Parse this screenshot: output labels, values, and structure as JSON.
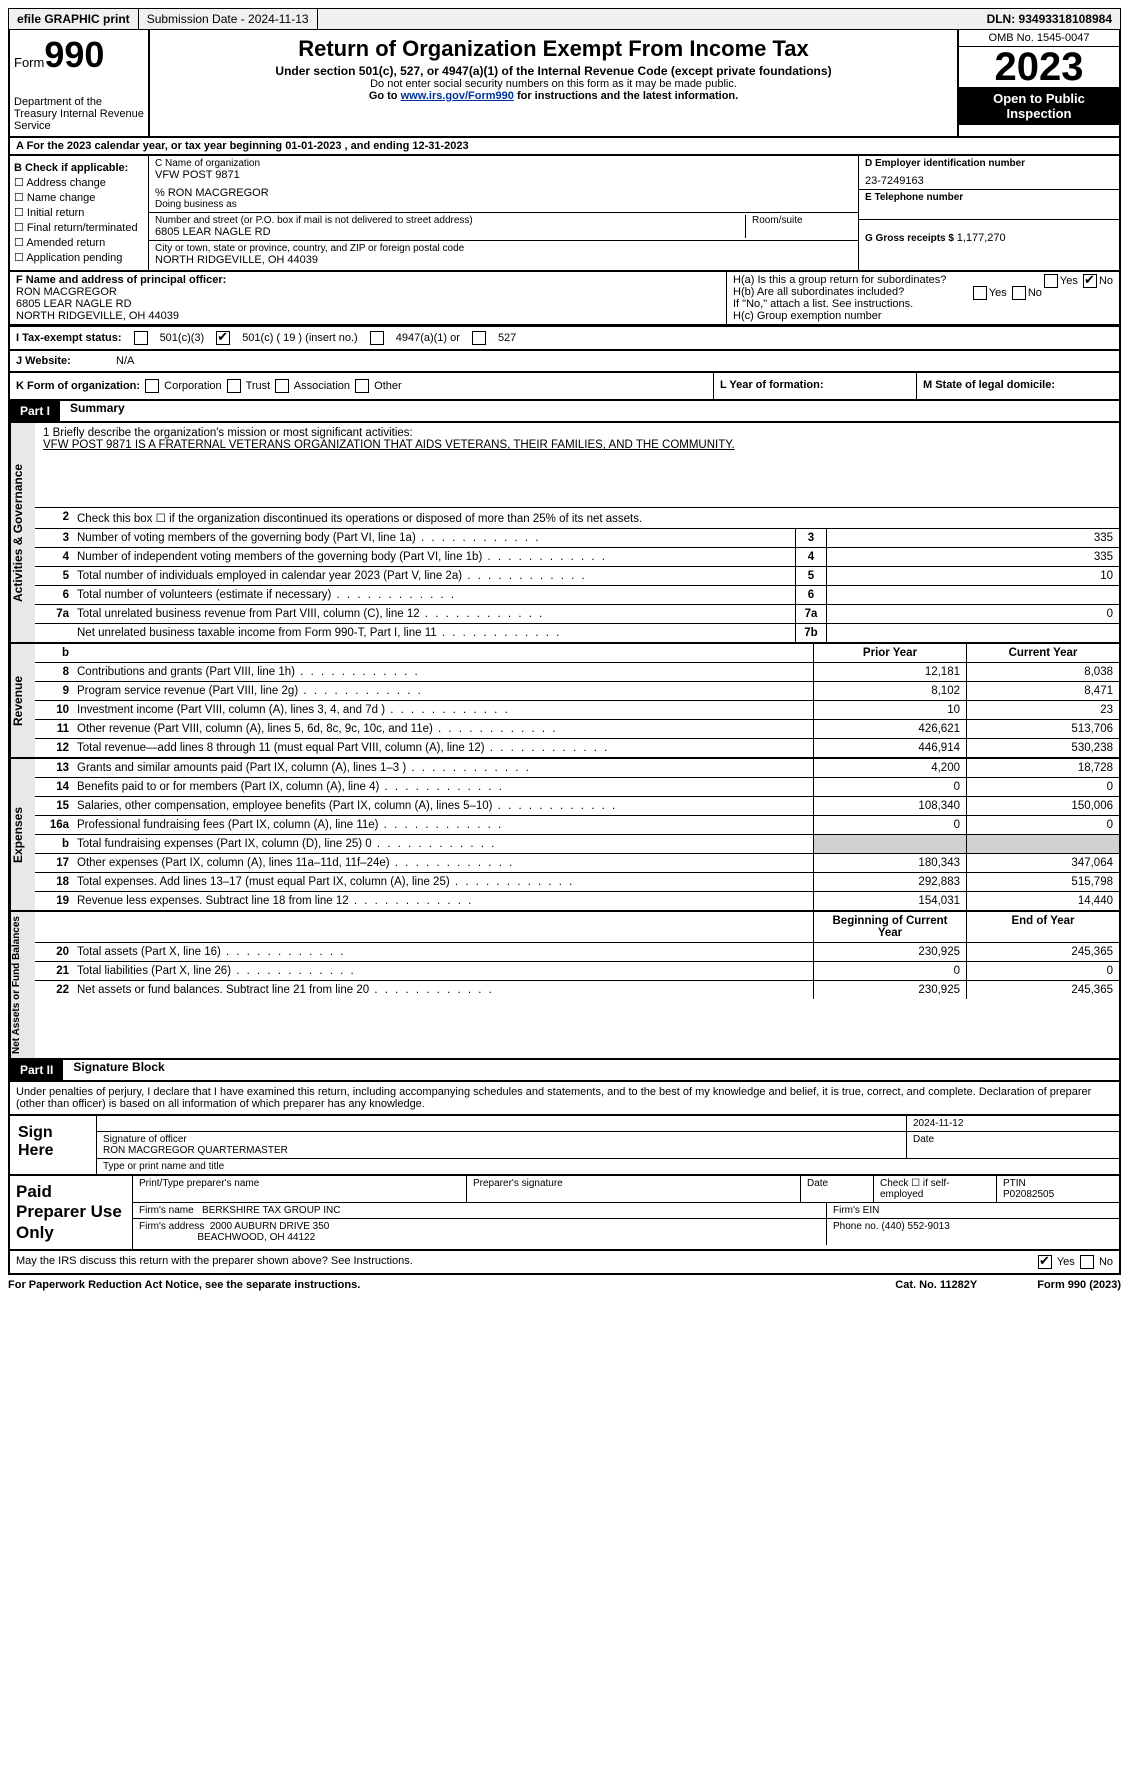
{
  "top": {
    "efile": "efile GRAPHIC print",
    "submission": "Submission Date - 2024-11-13",
    "dln": "DLN: 93493318108984"
  },
  "header": {
    "form": "Form",
    "num": "990",
    "dept": "Department of the Treasury Internal Revenue Service",
    "title": "Return of Organization Exempt From Income Tax",
    "sub": "Under section 501(c), 527, or 4947(a)(1) of the Internal Revenue Code (except private foundations)",
    "small1": "Do not enter social security numbers on this form as it may be made public.",
    "small2_pre": "Go to ",
    "small2_link": "www.irs.gov/Form990",
    "small2_post": " for instructions and the latest information.",
    "omb": "OMB No. 1545-0047",
    "year": "2023",
    "open": "Open to Public Inspection"
  },
  "rowA": "A For the 2023 calendar year, or tax year beginning 01-01-2023   , and ending 12-31-2023",
  "B": {
    "hdr": "B Check if applicable:",
    "opts": [
      "Address change",
      "Name change",
      "Initial return",
      "Final return/terminated",
      "Amended return",
      "Application pending"
    ]
  },
  "C": {
    "lbl": "C Name of organization",
    "name": "VFW POST 9871",
    "care": "% RON MACGREGOR",
    "dba_lbl": "Doing business as",
    "addr_lbl": "Number and street (or P.O. box if mail is not delivered to street address)",
    "room_lbl": "Room/suite",
    "addr": "6805 LEAR NAGLE RD",
    "city_lbl": "City or town, state or province, country, and ZIP or foreign postal code",
    "city": "NORTH RIDGEVILLE, OH  44039"
  },
  "D": {
    "lbl": "D Employer identification number",
    "val": "23-7249163"
  },
  "E": {
    "lbl": "E Telephone number"
  },
  "G": {
    "lbl": "G Gross receipts $ ",
    "val": "1,177,270"
  },
  "F": {
    "lbl": "F  Name and address of principal officer:",
    "l1": "RON MACGREGOR",
    "l2": "6805 LEAR NAGLE RD",
    "l3": "NORTH RIDGEVILLE, OH  44039"
  },
  "H": {
    "a": "H(a)  Is this a group return for subordinates?",
    "b": "H(b)  Are all subordinates included?",
    "b2": "If \"No,\" attach a list. See instructions.",
    "c": "H(c)  Group exemption number"
  },
  "I": {
    "lbl": "I   Tax-exempt status:",
    "o1": "501(c)(3)",
    "o2": "501(c) ( 19 ) (insert no.)",
    "o3": "4947(a)(1) or",
    "o4": "527"
  },
  "J": {
    "lbl": "J   Website:",
    "val": "N/A"
  },
  "K": {
    "lbl": "K Form of organization:",
    "opts": [
      "Corporation",
      "Trust",
      "Association",
      "Other"
    ]
  },
  "L": "L Year of formation:",
  "M": "M State of legal domicile:",
  "part1": {
    "hdr": "Part I",
    "title": "Summary"
  },
  "mission": {
    "lbl": "1   Briefly describe the organization's mission or most significant activities:",
    "text": "VFW POST 9871 IS A FRATERNAL VETERANS ORGANIZATION THAT AIDS VETERANS, THEIR FAMILIES, AND THE COMMUNITY."
  },
  "line2": "Check this box  ☐  if the organization discontinued its operations or disposed of more than 25% of its net assets.",
  "gov": [
    {
      "n": "3",
      "d": "Number of voting members of the governing body (Part VI, line 1a)",
      "b": "3",
      "v": "335"
    },
    {
      "n": "4",
      "d": "Number of independent voting members of the governing body (Part VI, line 1b)",
      "b": "4",
      "v": "335"
    },
    {
      "n": "5",
      "d": "Total number of individuals employed in calendar year 2023 (Part V, line 2a)",
      "b": "5",
      "v": "10"
    },
    {
      "n": "6",
      "d": "Total number of volunteers (estimate if necessary)",
      "b": "6",
      "v": ""
    },
    {
      "n": "7a",
      "d": "Total unrelated business revenue from Part VIII, column (C), line 12",
      "b": "7a",
      "v": "0"
    },
    {
      "n": "",
      "d": "Net unrelated business taxable income from Form 990-T, Part I, line 11",
      "b": "7b",
      "v": ""
    }
  ],
  "rev_hdr": {
    "p": "Prior Year",
    "c": "Current Year"
  },
  "rev": [
    {
      "n": "8",
      "d": "Contributions and grants (Part VIII, line 1h)",
      "p": "12,181",
      "c": "8,038"
    },
    {
      "n": "9",
      "d": "Program service revenue (Part VIII, line 2g)",
      "p": "8,102",
      "c": "8,471"
    },
    {
      "n": "10",
      "d": "Investment income (Part VIII, column (A), lines 3, 4, and 7d )",
      "p": "10",
      "c": "23"
    },
    {
      "n": "11",
      "d": "Other revenue (Part VIII, column (A), lines 5, 6d, 8c, 9c, 10c, and 11e)",
      "p": "426,621",
      "c": "513,706"
    },
    {
      "n": "12",
      "d": "Total revenue—add lines 8 through 11 (must equal Part VIII, column (A), line 12)",
      "p": "446,914",
      "c": "530,238"
    }
  ],
  "exp": [
    {
      "n": "13",
      "d": "Grants and similar amounts paid (Part IX, column (A), lines 1–3 )",
      "p": "4,200",
      "c": "18,728"
    },
    {
      "n": "14",
      "d": "Benefits paid to or for members (Part IX, column (A), line 4)",
      "p": "0",
      "c": "0"
    },
    {
      "n": "15",
      "d": "Salaries, other compensation, employee benefits (Part IX, column (A), lines 5–10)",
      "p": "108,340",
      "c": "150,006"
    },
    {
      "n": "16a",
      "d": "Professional fundraising fees (Part IX, column (A), line 11e)",
      "p": "0",
      "c": "0"
    },
    {
      "n": "b",
      "d": "Total fundraising expenses (Part IX, column (D), line 25) 0",
      "p": "",
      "c": "",
      "shade": true
    },
    {
      "n": "17",
      "d": "Other expenses (Part IX, column (A), lines 11a–11d, 11f–24e)",
      "p": "180,343",
      "c": "347,064"
    },
    {
      "n": "18",
      "d": "Total expenses. Add lines 13–17 (must equal Part IX, column (A), line 25)",
      "p": "292,883",
      "c": "515,798"
    },
    {
      "n": "19",
      "d": "Revenue less expenses. Subtract line 18 from line 12",
      "p": "154,031",
      "c": "14,440"
    }
  ],
  "net_hdr": {
    "p": "Beginning of Current Year",
    "c": "End of Year"
  },
  "net": [
    {
      "n": "20",
      "d": "Total assets (Part X, line 16)",
      "p": "230,925",
      "c": "245,365"
    },
    {
      "n": "21",
      "d": "Total liabilities (Part X, line 26)",
      "p": "0",
      "c": "0"
    },
    {
      "n": "22",
      "d": "Net assets or fund balances. Subtract line 21 from line 20",
      "p": "230,925",
      "c": "245,365"
    }
  ],
  "part2": {
    "hdr": "Part II",
    "title": "Signature Block"
  },
  "perjury": "Under penalties of perjury, I declare that I have examined this return, including accompanying schedules and statements, and to the best of my knowledge and belief, it is true, correct, and complete. Declaration of preparer (other than officer) is based on all information of which preparer has any knowledge.",
  "sign": {
    "here": "Sign Here",
    "date": "2024-11-12",
    "sig_lbl": "Signature of officer",
    "name": "RON MACGREGOR QUARTERMASTER",
    "type_lbl": "Type or print name and title",
    "date_lbl": "Date"
  },
  "prep": {
    "hdr": "Paid Preparer Use Only",
    "c1": "Print/Type preparer's name",
    "c2": "Preparer's signature",
    "c3": "Date",
    "c4": "Check ☐ if self-employed",
    "c5_lbl": "PTIN",
    "c5": "P02082505",
    "firm_lbl": "Firm's name",
    "firm": "BERKSHIRE TAX GROUP INC",
    "ein_lbl": "Firm's EIN",
    "addr_lbl": "Firm's address",
    "addr1": "2000 AUBURN DRIVE 350",
    "addr2": "BEACHWOOD, OH  44122",
    "phone_lbl": "Phone no.",
    "phone": "(440) 552-9013"
  },
  "discuss": "May the IRS discuss this return with the preparer shown above? See Instructions.",
  "footer": {
    "f1": "For Paperwork Reduction Act Notice, see the separate instructions.",
    "f2": "Cat. No. 11282Y",
    "f3": "Form 990 (2023)"
  },
  "labels": {
    "yes": "Yes",
    "no": "No"
  }
}
